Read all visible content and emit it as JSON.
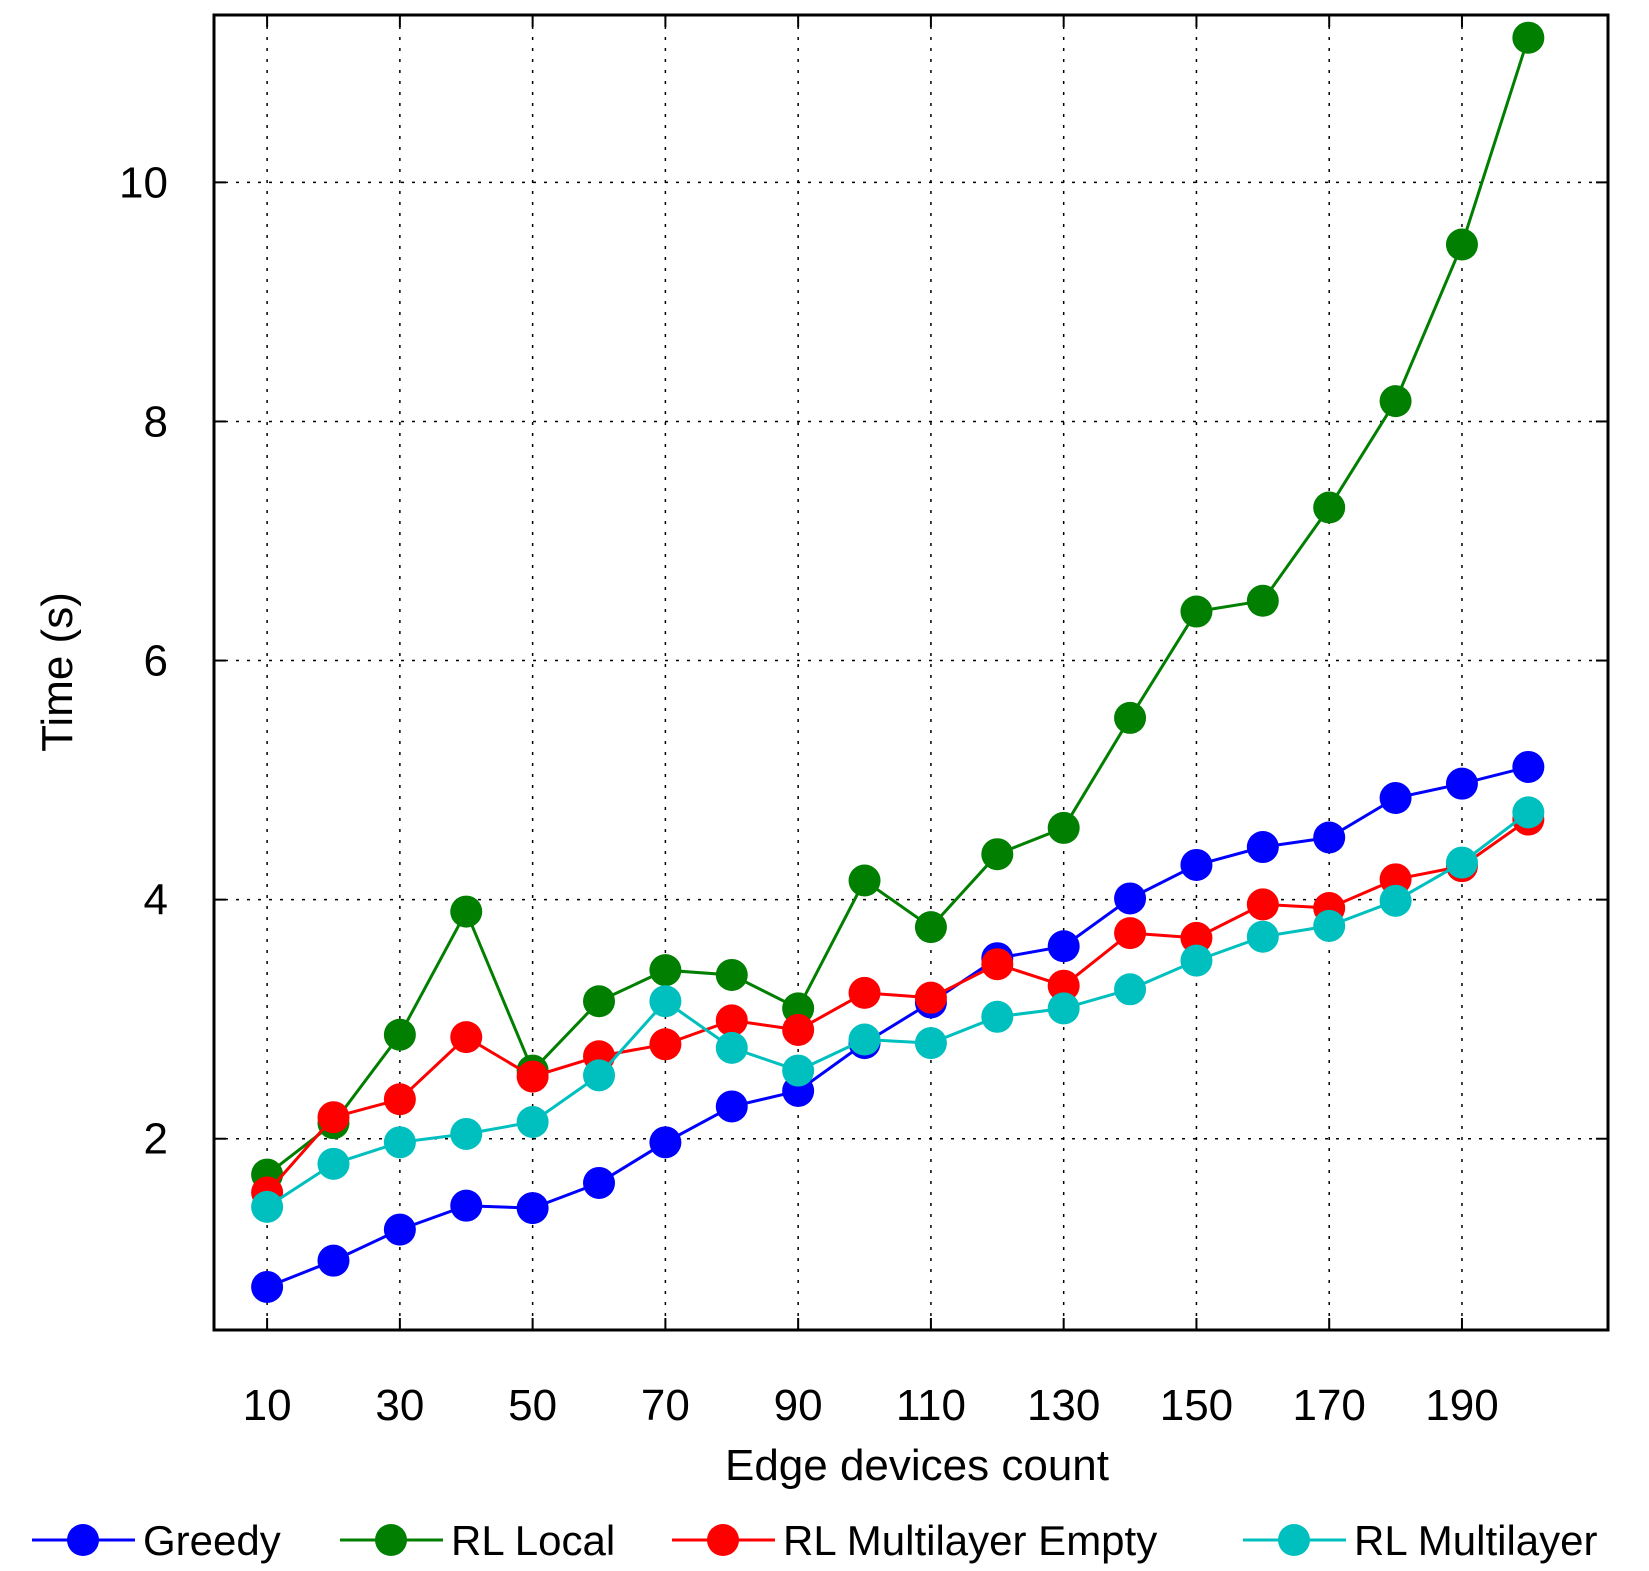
{
  "chart_data": {
    "type": "line",
    "title": "",
    "xlabel": "Edge devices count",
    "ylabel": "Time (s)",
    "xlim": [
      2,
      212
    ],
    "ylim": [
      0.4,
      11.4
    ],
    "x_ticks": [
      10,
      30,
      50,
      70,
      90,
      110,
      130,
      150,
      170,
      190
    ],
    "y_ticks": [
      2,
      4,
      6,
      8,
      10
    ],
    "grid": true,
    "legend_position": "bottom",
    "x": [
      10,
      20,
      30,
      40,
      50,
      60,
      70,
      80,
      90,
      100,
      110,
      120,
      130,
      140,
      150,
      160,
      170,
      180,
      190,
      200
    ],
    "series": [
      {
        "name": "Greedy",
        "color": "#0000ff",
        "values": [
          0.76,
          0.98,
          1.24,
          1.44,
          1.42,
          1.63,
          1.97,
          2.27,
          2.4,
          2.8,
          3.14,
          3.51,
          3.61,
          4.01,
          4.29,
          4.44,
          4.52,
          4.85,
          4.97,
          5.11
        ]
      },
      {
        "name": "RL Local",
        "color": "#007f00",
        "values": [
          1.7,
          2.13,
          2.87,
          3.9,
          2.57,
          3.15,
          3.41,
          3.37,
          3.09,
          4.16,
          3.77,
          4.38,
          4.6,
          5.52,
          6.41,
          6.5,
          7.28,
          8.17,
          9.48,
          11.21
        ]
      },
      {
        "name": "RL Multilayer Empty",
        "color": "#ff0000",
        "values": [
          1.55,
          2.18,
          2.33,
          2.85,
          2.52,
          2.69,
          2.79,
          2.99,
          2.91,
          3.22,
          3.18,
          3.46,
          3.28,
          3.72,
          3.68,
          3.96,
          3.93,
          4.17,
          4.28,
          4.67
        ]
      },
      {
        "name": "RL Multilayer",
        "color": "#00bfbf",
        "values": [
          1.43,
          1.79,
          1.97,
          2.04,
          2.14,
          2.53,
          3.15,
          2.76,
          2.57,
          2.83,
          2.8,
          3.02,
          3.09,
          3.25,
          3.49,
          3.69,
          3.78,
          3.99,
          4.31,
          4.73
        ]
      }
    ]
  }
}
